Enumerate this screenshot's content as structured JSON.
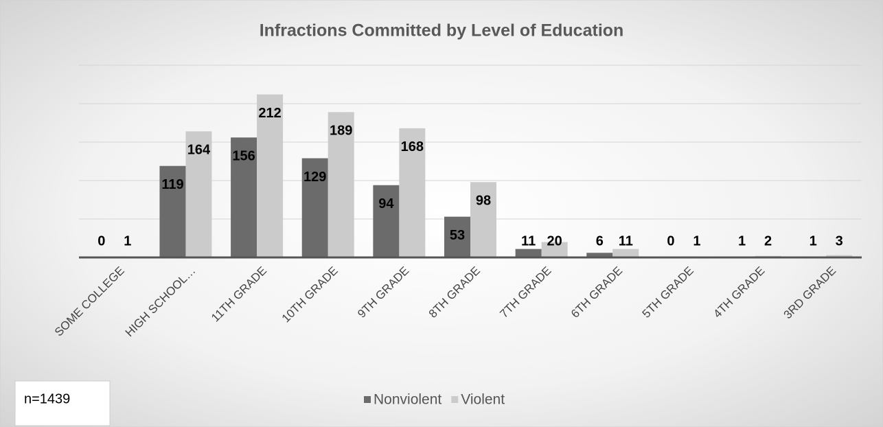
{
  "chart_data": {
    "type": "bar",
    "title": "Infractions Committed by Level of Education",
    "annotation": "n=1439",
    "categories": [
      "SOME COLLEGE",
      "HIGH SCHOOL…",
      "11TH GRADE",
      "10TH GRADE",
      "9TH GRADE",
      "8TH GRADE",
      "7TH GRADE",
      "6TH GRADE",
      "5TH GRADE",
      "4TH GRADE",
      "3RD GRADE"
    ],
    "series": [
      {
        "name": "Nonviolent",
        "color": "#6b6b6b",
        "values": [
          0,
          119,
          156,
          129,
          94,
          53,
          11,
          6,
          0,
          1,
          1
        ]
      },
      {
        "name": "Violent",
        "color": "#cbcbcb",
        "values": [
          1,
          164,
          212,
          189,
          168,
          98,
          20,
          11,
          1,
          2,
          3
        ]
      }
    ],
    "ylim": [
      0,
      250
    ],
    "yticks": [
      0,
      50,
      100,
      150,
      200,
      250
    ],
    "grid": true,
    "legend": "bottom"
  }
}
